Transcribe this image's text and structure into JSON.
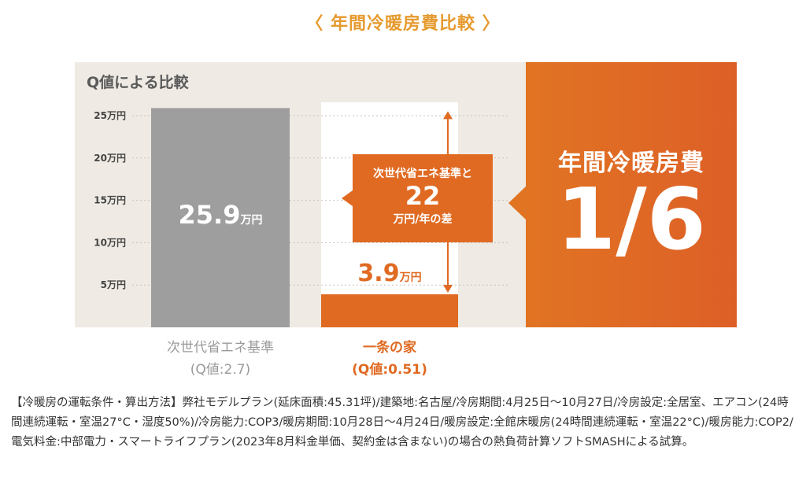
{
  "title": "〈 年間冷暖房費比較 〉",
  "chart_data": {
    "type": "bar",
    "title": "Q値による比較",
    "y_unit": "万円",
    "ylim": [
      0,
      25
    ],
    "yticks": [
      "25万円",
      "20万円",
      "15万円",
      "10万円",
      "5万円"
    ],
    "ytick_values": [
      25,
      20,
      15,
      10,
      5
    ],
    "grid": true,
    "categories": [
      "次世代省エネ基準",
      "一条の家"
    ],
    "sublabels": [
      "(Q値:2.7)",
      "(Q値:0.51)"
    ],
    "values": [
      25.9,
      3.9
    ],
    "value_labels": [
      "25.9",
      "3.9"
    ],
    "value_unit": "万円",
    "colors": [
      "#9e9e9e",
      "#e06a22"
    ],
    "difference": {
      "line1": "次世代省エネ基準と",
      "value": "22",
      "line2": "万円/年の差"
    },
    "highlight": {
      "title": "年間冷暖房費",
      "value": "1/6"
    }
  },
  "note": "【冷暖房の運転条件・算出方法】弊社モデルプラン(延床面積:45.31坪)/建築地:名古屋/冷房期間:4月25日〜10月27日/冷房設定:全居室、エアコン(24時間連続運転・室温27°C・湿度50%)/冷房能力:COP3/暖房期間:10月28日〜4月24日/暖房設定:全館床暖房(24時間連続運転・室温22°C)/暖房能力:COP2/電気料金:中部電力・スマートライフプラン(2023年8月料金単価、契約金は含まない)の場合の熱負荷計算ソフトSMASHによる試算。"
}
